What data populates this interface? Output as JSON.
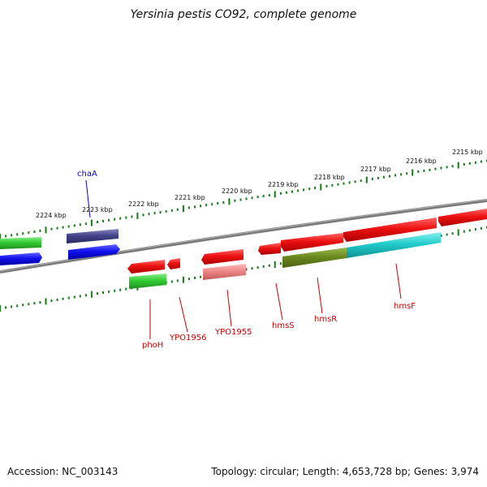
{
  "title": "Yersinia pestis CO92, complete genome",
  "footer": {
    "accession": "Accession: NC_003143",
    "topology": "Topology: circular; Length: 4,653,728 bp; Genes: 3,974"
  },
  "colors": {
    "backbone": "#808080",
    "tick": "#1a7a1a",
    "label_red": "#cc0000",
    "label_blue": "#0000cc",
    "feature_red": "#ee1111",
    "feature_green": "#33cc33",
    "feature_blue": "#1111ee",
    "feature_navy": "#44448c",
    "feature_pink": "#ee8888",
    "feature_olive": "#6b8a1f",
    "feature_cyan": "#22cccc"
  },
  "ruler_labels": [
    "2224 kbp",
    "2223 kbp",
    "2222 kbp",
    "2221 kbp",
    "2220 kbp",
    "2219 kbp",
    "2218 kbp",
    "2217 kbp",
    "2216 kbp",
    "2215 kbp"
  ],
  "gene_labels": [
    {
      "name": "chaA",
      "strand": "top"
    },
    {
      "name": "phoH",
      "strand": "bottom"
    },
    {
      "name": "YPO1956",
      "strand": "bottom"
    },
    {
      "name": "YPO1955",
      "strand": "bottom"
    },
    {
      "name": "hmsS",
      "strand": "bottom"
    },
    {
      "name": "hmsR",
      "strand": "bottom"
    },
    {
      "name": "hmsF",
      "strand": "bottom"
    }
  ]
}
